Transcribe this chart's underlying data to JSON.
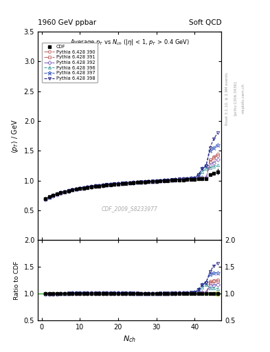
{
  "title_top_left": "1960 GeV ppbar",
  "title_top_right": "Soft QCD",
  "subtitle": "Average $p_T$ vs $N_{ch}$ ($|\\eta|$ < 1, $p_T$ > 0.4 GeV)",
  "xlabel": "$N_{ch}$",
  "ylabel_main": "$\\langle p_T \\rangle$ / GeV",
  "ylabel_ratio": "Ratio to CDF",
  "watermark": "CDF_2009_S8233977",
  "right_label1": "Rivet 3.1.10, ≥ 2.9M events",
  "right_label2": "[arXiv:1306.3436]",
  "right_label3": "mcplots.cern.ch",
  "ylim_main": [
    0.0,
    3.5
  ],
  "ylim_ratio": [
    0.5,
    2.0
  ],
  "xlim": [
    -1,
    47
  ],
  "yticks_main": [
    0.5,
    1.0,
    1.5,
    2.0,
    2.5,
    3.0,
    3.5
  ],
  "yticks_ratio": [
    0.5,
    1.0,
    1.5,
    2.0
  ],
  "xticks": [
    0,
    10,
    20,
    30,
    40
  ],
  "cdf_x": [
    1,
    2,
    3,
    4,
    5,
    6,
    7,
    8,
    9,
    10,
    11,
    12,
    13,
    14,
    15,
    16,
    17,
    18,
    19,
    20,
    21,
    22,
    23,
    24,
    25,
    26,
    27,
    28,
    29,
    30,
    31,
    32,
    33,
    34,
    35,
    36,
    37,
    38,
    39,
    40,
    41,
    42,
    43,
    44,
    45,
    46
  ],
  "cdf_y": [
    0.693,
    0.727,
    0.754,
    0.776,
    0.795,
    0.812,
    0.827,
    0.841,
    0.853,
    0.864,
    0.874,
    0.884,
    0.893,
    0.901,
    0.909,
    0.916,
    0.923,
    0.93,
    0.936,
    0.942,
    0.948,
    0.953,
    0.958,
    0.963,
    0.968,
    0.973,
    0.977,
    0.981,
    0.985,
    0.989,
    0.993,
    0.997,
    1.001,
    1.004,
    1.007,
    1.01,
    1.013,
    1.016,
    1.019,
    1.022,
    1.025,
    1.028,
    1.031,
    1.1,
    1.12,
    1.15
  ],
  "cdf_yerr": [
    0.01,
    0.01,
    0.01,
    0.01,
    0.01,
    0.01,
    0.01,
    0.01,
    0.01,
    0.01,
    0.01,
    0.01,
    0.01,
    0.01,
    0.01,
    0.01,
    0.01,
    0.01,
    0.01,
    0.01,
    0.01,
    0.01,
    0.01,
    0.01,
    0.01,
    0.01,
    0.01,
    0.01,
    0.01,
    0.01,
    0.01,
    0.01,
    0.01,
    0.01,
    0.01,
    0.01,
    0.01,
    0.01,
    0.01,
    0.01,
    0.01,
    0.01,
    0.01,
    0.02,
    0.03,
    0.05
  ],
  "mc_lines": [
    {
      "label": "Pythia 6.428 390",
      "color": "#c06868",
      "marker": "o",
      "linestyle": "-.",
      "x": [
        1,
        2,
        3,
        4,
        5,
        6,
        7,
        8,
        9,
        10,
        11,
        12,
        13,
        14,
        15,
        16,
        17,
        18,
        19,
        20,
        21,
        22,
        23,
        24,
        25,
        26,
        27,
        28,
        29,
        30,
        31,
        32,
        33,
        34,
        35,
        36,
        37,
        38,
        39,
        40,
        41,
        42,
        43,
        44,
        45,
        46
      ],
      "y": [
        0.69,
        0.72,
        0.748,
        0.772,
        0.793,
        0.812,
        0.829,
        0.844,
        0.857,
        0.869,
        0.88,
        0.89,
        0.899,
        0.908,
        0.916,
        0.923,
        0.93,
        0.936,
        0.942,
        0.948,
        0.953,
        0.958,
        0.963,
        0.967,
        0.971,
        0.975,
        0.979,
        0.982,
        0.986,
        0.99,
        0.995,
        1.0,
        1.005,
        1.01,
        1.015,
        1.02,
        1.025,
        1.03,
        1.035,
        1.04,
        1.04,
        1.04,
        1.03,
        1.35,
        1.4,
        1.45
      ]
    },
    {
      "label": "Pythia 6.428 391",
      "color": "#c06868",
      "marker": "s",
      "linestyle": "-.",
      "x": [
        1,
        2,
        3,
        4,
        5,
        6,
        7,
        8,
        9,
        10,
        11,
        12,
        13,
        14,
        15,
        16,
        17,
        18,
        19,
        20,
        21,
        22,
        23,
        24,
        25,
        26,
        27,
        28,
        29,
        30,
        31,
        32,
        33,
        34,
        35,
        36,
        37,
        38,
        39,
        40,
        41,
        42,
        43,
        44,
        45,
        46
      ],
      "y": [
        0.69,
        0.72,
        0.748,
        0.772,
        0.793,
        0.812,
        0.829,
        0.844,
        0.857,
        0.869,
        0.88,
        0.89,
        0.899,
        0.908,
        0.916,
        0.923,
        0.93,
        0.936,
        0.942,
        0.948,
        0.953,
        0.958,
        0.963,
        0.967,
        0.971,
        0.975,
        0.979,
        0.982,
        0.986,
        0.99,
        0.995,
        1.0,
        1.005,
        1.01,
        1.015,
        1.02,
        1.025,
        1.03,
        1.035,
        1.038,
        1.038,
        1.038,
        1.028,
        1.32,
        1.38,
        1.42
      ]
    },
    {
      "label": "Pythia 6.428 392",
      "color": "#8068c0",
      "marker": "D",
      "linestyle": "-.",
      "x": [
        1,
        2,
        3,
        4,
        5,
        6,
        7,
        8,
        9,
        10,
        11,
        12,
        13,
        14,
        15,
        16,
        17,
        18,
        19,
        20,
        21,
        22,
        23,
        24,
        25,
        26,
        27,
        28,
        29,
        30,
        31,
        32,
        33,
        34,
        35,
        36,
        37,
        38,
        39,
        40,
        41,
        42,
        43,
        44,
        45,
        46
      ],
      "y": [
        0.688,
        0.718,
        0.746,
        0.77,
        0.791,
        0.81,
        0.827,
        0.842,
        0.855,
        0.867,
        0.878,
        0.888,
        0.897,
        0.906,
        0.914,
        0.921,
        0.928,
        0.934,
        0.94,
        0.946,
        0.951,
        0.956,
        0.961,
        0.965,
        0.969,
        0.973,
        0.977,
        0.981,
        0.985,
        0.989,
        0.994,
        0.999,
        1.004,
        1.009,
        1.014,
        1.019,
        1.024,
        1.029,
        1.034,
        1.039,
        1.044,
        1.049,
        1.054,
        1.25,
        1.3,
        1.35
      ]
    },
    {
      "label": "Pythia 6.428 396",
      "color": "#40a0a0",
      "marker": "^",
      "linestyle": "--",
      "x": [
        1,
        2,
        3,
        4,
        5,
        6,
        7,
        8,
        9,
        10,
        11,
        12,
        13,
        14,
        15,
        16,
        17,
        18,
        19,
        20,
        21,
        22,
        23,
        24,
        25,
        26,
        27,
        28,
        29,
        30,
        31,
        32,
        33,
        34,
        35,
        36,
        37,
        38,
        39,
        40,
        41,
        42,
        43,
        44,
        45,
        46
      ],
      "y": [
        0.695,
        0.725,
        0.753,
        0.777,
        0.798,
        0.817,
        0.834,
        0.849,
        0.862,
        0.874,
        0.885,
        0.895,
        0.904,
        0.912,
        0.92,
        0.927,
        0.934,
        0.94,
        0.946,
        0.952,
        0.957,
        0.962,
        0.967,
        0.971,
        0.975,
        0.979,
        0.983,
        0.987,
        0.991,
        0.995,
        1.0,
        1.005,
        1.01,
        1.015,
        1.02,
        1.025,
        1.03,
        1.035,
        1.04,
        1.045,
        1.1,
        1.15,
        1.2,
        1.22,
        1.24,
        1.26
      ]
    },
    {
      "label": "Pythia 6.428 397",
      "color": "#4060c0",
      "marker": "*",
      "linestyle": "--",
      "x": [
        1,
        2,
        3,
        4,
        5,
        6,
        7,
        8,
        9,
        10,
        11,
        12,
        13,
        14,
        15,
        16,
        17,
        18,
        19,
        20,
        21,
        22,
        23,
        24,
        25,
        26,
        27,
        28,
        29,
        30,
        31,
        32,
        33,
        34,
        35,
        36,
        37,
        38,
        39,
        40,
        41,
        42,
        43,
        44,
        45,
        46
      ],
      "y": [
        0.693,
        0.723,
        0.751,
        0.775,
        0.796,
        0.815,
        0.832,
        0.847,
        0.86,
        0.872,
        0.883,
        0.893,
        0.902,
        0.91,
        0.918,
        0.925,
        0.932,
        0.938,
        0.944,
        0.95,
        0.955,
        0.96,
        0.965,
        0.969,
        0.973,
        0.977,
        0.981,
        0.985,
        0.989,
        0.993,
        0.998,
        1.003,
        1.008,
        1.013,
        1.018,
        1.023,
        1.028,
        1.033,
        1.038,
        1.043,
        1.1,
        1.2,
        1.25,
        1.5,
        1.55,
        1.6
      ]
    },
    {
      "label": "Pythia 6.428 398",
      "color": "#202080",
      "marker": "v",
      "linestyle": "--",
      "x": [
        1,
        2,
        3,
        4,
        5,
        6,
        7,
        8,
        9,
        10,
        11,
        12,
        13,
        14,
        15,
        16,
        17,
        18,
        19,
        20,
        21,
        22,
        23,
        24,
        25,
        26,
        27,
        28,
        29,
        30,
        31,
        32,
        33,
        34,
        35,
        36,
        37,
        38,
        39,
        40,
        41,
        42,
        43,
        44,
        45,
        46
      ],
      "y": [
        0.695,
        0.725,
        0.753,
        0.777,
        0.798,
        0.817,
        0.834,
        0.849,
        0.862,
        0.874,
        0.885,
        0.895,
        0.904,
        0.912,
        0.92,
        0.927,
        0.934,
        0.94,
        0.946,
        0.952,
        0.957,
        0.962,
        0.967,
        0.971,
        0.975,
        0.979,
        0.983,
        0.987,
        0.991,
        0.995,
        1.0,
        1.005,
        1.01,
        1.015,
        1.02,
        1.025,
        1.03,
        1.035,
        1.04,
        1.045,
        1.1,
        1.2,
        1.25,
        1.55,
        1.7,
        1.8
      ]
    }
  ],
  "ratio_band_color": "#c8e040",
  "ratio_band_alpha": 0.7,
  "ratio_green_line": "#00a000",
  "bg_color": "#ffffff"
}
